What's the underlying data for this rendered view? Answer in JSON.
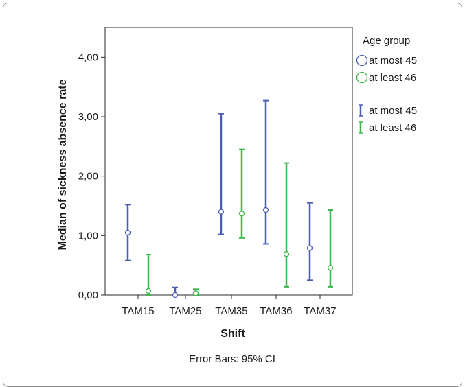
{
  "chart_data": {
    "type": "errorbar",
    "xlabel": "Shift",
    "ylabel": "Median of sickness absence rate",
    "categories": [
      "TAM15",
      "TAM25",
      "TAM35",
      "TAM36",
      "TAM37"
    ],
    "ylim": [
      0,
      4.5
    ],
    "yticks": [
      0,
      1,
      2,
      3,
      4
    ],
    "ytick_labels": [
      "0,00",
      "1,00",
      "2,00",
      "3,00",
      "4,00"
    ],
    "legend_title": "Age group",
    "legend_position": "right",
    "footnote": "Error Bars: 95% CI",
    "series": [
      {
        "name": "at most 45",
        "color": "#4a5fb4",
        "median": [
          1.05,
          0.0,
          1.4,
          1.43,
          0.79
        ],
        "lower": [
          0.58,
          0.0,
          1.02,
          0.86,
          0.25
        ],
        "upper": [
          1.52,
          0.13,
          3.05,
          3.27,
          1.55
        ]
      },
      {
        "name": "at least 46",
        "color": "#3db54a",
        "median": [
          0.07,
          0.03,
          1.37,
          0.69,
          0.46
        ],
        "lower": [
          0.0,
          0.0,
          0.96,
          0.14,
          0.14
        ],
        "upper": [
          0.68,
          0.1,
          2.45,
          2.22,
          1.43
        ]
      }
    ]
  }
}
